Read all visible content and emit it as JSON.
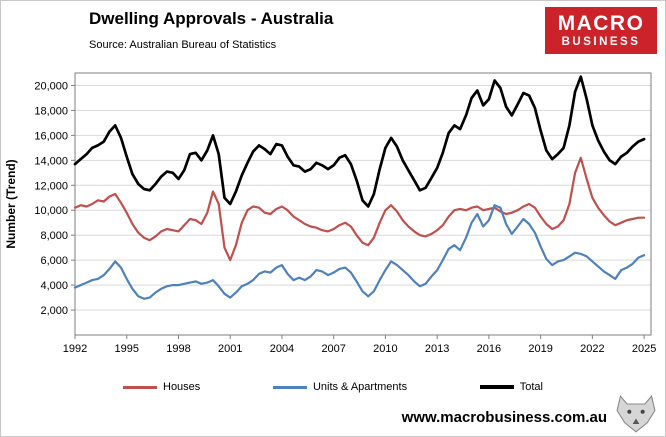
{
  "header": {
    "title": "Dwelling Approvals - Australia",
    "source": "Source: Australian Bureau of Statistics",
    "logo": {
      "line1": "MACRO",
      "line2": "BUSINESS",
      "bg_color": "#cc2229"
    }
  },
  "footer": {
    "website": "www.macrobusiness.com.au",
    "icon": "wolf-logo"
  },
  "chart_data": {
    "type": "line",
    "title": "Dwelling Approvals - Australia",
    "xlabel": "",
    "ylabel": "Number (Trend)",
    "xlim": [
      1992,
      2025.4
    ],
    "ylim": [
      0,
      21000
    ],
    "grid": "horizontal",
    "legend_position": "bottom",
    "xticks": [
      1992,
      1995,
      1998,
      2001,
      2004,
      2007,
      2010,
      2013,
      2016,
      2019,
      2022,
      2025
    ],
    "yticks": [
      {
        "value": 2000,
        "label": "2,000"
      },
      {
        "value": 4000,
        "label": "4,000"
      },
      {
        "value": 6000,
        "label": "6,000"
      },
      {
        "value": 8000,
        "label": "8,000"
      },
      {
        "value": 10000,
        "label": "10,000"
      },
      {
        "value": 12000,
        "label": "12,000"
      },
      {
        "value": 14000,
        "label": "14,000"
      },
      {
        "value": 16000,
        "label": "16,000"
      },
      {
        "value": 18000,
        "label": "18,000"
      },
      {
        "value": 20000,
        "label": "20,000"
      }
    ],
    "x": [
      1992,
      1992.33,
      1992.67,
      1993,
      1993.33,
      1993.67,
      1994,
      1994.33,
      1994.67,
      1995,
      1995.33,
      1995.67,
      1996,
      1996.33,
      1996.67,
      1997,
      1997.33,
      1997.67,
      1998,
      1998.33,
      1998.67,
      1999,
      1999.33,
      1999.67,
      2000,
      2000.33,
      2000.67,
      2001,
      2001.33,
      2001.67,
      2002,
      2002.33,
      2002.67,
      2003,
      2003.33,
      2003.67,
      2004,
      2004.33,
      2004.67,
      2005,
      2005.33,
      2005.67,
      2006,
      2006.33,
      2006.67,
      2007,
      2007.33,
      2007.67,
      2008,
      2008.33,
      2008.67,
      2009,
      2009.33,
      2009.67,
      2010,
      2010.33,
      2010.67,
      2011,
      2011.33,
      2011.67,
      2012,
      2012.33,
      2012.67,
      2013,
      2013.33,
      2013.67,
      2014,
      2014.33,
      2014.67,
      2015,
      2015.33,
      2015.67,
      2016,
      2016.33,
      2016.67,
      2017,
      2017.33,
      2017.67,
      2018,
      2018.33,
      2018.67,
      2019,
      2019.33,
      2019.67,
      2020,
      2020.33,
      2020.67,
      2021,
      2021.33,
      2021.67,
      2022,
      2022.33,
      2022.67,
      2023,
      2023.33,
      2023.67,
      2024,
      2024.33,
      2024.67,
      2025
    ],
    "series": [
      {
        "name": "Houses",
        "color": "#c0504d",
        "stroke_width": 2.2,
        "values": [
          10200,
          10400,
          10300,
          10500,
          10800,
          10700,
          11100,
          11300,
          10600,
          9800,
          8900,
          8200,
          7800,
          7600,
          7900,
          8300,
          8500,
          8400,
          8300,
          8800,
          9300,
          9200,
          8900,
          9800,
          11500,
          10500,
          7000,
          6000,
          7200,
          9000,
          10000,
          10300,
          10200,
          9800,
          9700,
          10100,
          10300,
          10000,
          9500,
          9200,
          8900,
          8700,
          8600,
          8400,
          8300,
          8500,
          8800,
          9000,
          8700,
          8000,
          7400,
          7200,
          7800,
          9000,
          10000,
          10400,
          9900,
          9200,
          8700,
          8300,
          8000,
          7900,
          8100,
          8400,
          8800,
          9500,
          10000,
          10100,
          10000,
          10200,
          10300,
          10000,
          10100,
          10200,
          9900,
          9700,
          9800,
          10000,
          10300,
          10500,
          10200,
          9500,
          8900,
          8500,
          8700,
          9200,
          10500,
          13000,
          14200,
          12500,
          11000,
          10200,
          9600,
          9100,
          8800,
          9000,
          9200,
          9300,
          9400,
          9400
        ]
      },
      {
        "name": "Units & Apartments",
        "color": "#4f81bd",
        "stroke_width": 2.2,
        "values": [
          3800,
          4000,
          4200,
          4400,
          4500,
          4800,
          5300,
          5900,
          5400,
          4500,
          3700,
          3100,
          2900,
          3000,
          3400,
          3700,
          3900,
          4000,
          4000,
          4100,
          4200,
          4300,
          4100,
          4200,
          4400,
          3900,
          3300,
          3000,
          3400,
          3900,
          4100,
          4400,
          4900,
          5100,
          5000,
          5400,
          5600,
          4900,
          4400,
          4600,
          4400,
          4700,
          5200,
          5100,
          4800,
          5000,
          5300,
          5400,
          5000,
          4300,
          3500,
          3100,
          3500,
          4400,
          5200,
          5900,
          5600,
          5200,
          4800,
          4300,
          3900,
          4100,
          4700,
          5200,
          6000,
          6900,
          7200,
          6800,
          7800,
          9000,
          9700,
          8700,
          9200,
          10400,
          10200,
          8900,
          8100,
          8700,
          9300,
          8900,
          8200,
          7100,
          6100,
          5600,
          5900,
          6000,
          6300,
          6600,
          6500,
          6300,
          5900,
          5500,
          5100,
          4800,
          4500,
          5200,
          5400,
          5700,
          6200,
          6400
        ]
      },
      {
        "name": "Total",
        "color": "#000000",
        "stroke_width": 2.7,
        "values": [
          13700,
          14100,
          14500,
          15000,
          15200,
          15500,
          16300,
          16800,
          15800,
          14300,
          12900,
          12100,
          11700,
          11600,
          12100,
          12700,
          13100,
          13000,
          12500,
          13200,
          14500,
          14600,
          14000,
          14800,
          16000,
          14500,
          11000,
          10500,
          11500,
          12800,
          13800,
          14700,
          15200,
          14900,
          14500,
          15300,
          15200,
          14300,
          13600,
          13500,
          13100,
          13300,
          13800,
          13600,
          13300,
          13600,
          14200,
          14400,
          13700,
          12400,
          10800,
          10300,
          11300,
          13300,
          15000,
          15800,
          15100,
          14000,
          13200,
          12400,
          11600,
          11800,
          12600,
          13400,
          14600,
          16200,
          16800,
          16500,
          17600,
          19000,
          19600,
          18400,
          18900,
          20400,
          19800,
          18300,
          17600,
          18500,
          19400,
          19200,
          18200,
          16400,
          14800,
          14100,
          14500,
          15000,
          16800,
          19500,
          20700,
          18900,
          16800,
          15600,
          14700,
          14000,
          13700,
          14300,
          14600,
          15100,
          15500,
          15700
        ]
      }
    ]
  }
}
